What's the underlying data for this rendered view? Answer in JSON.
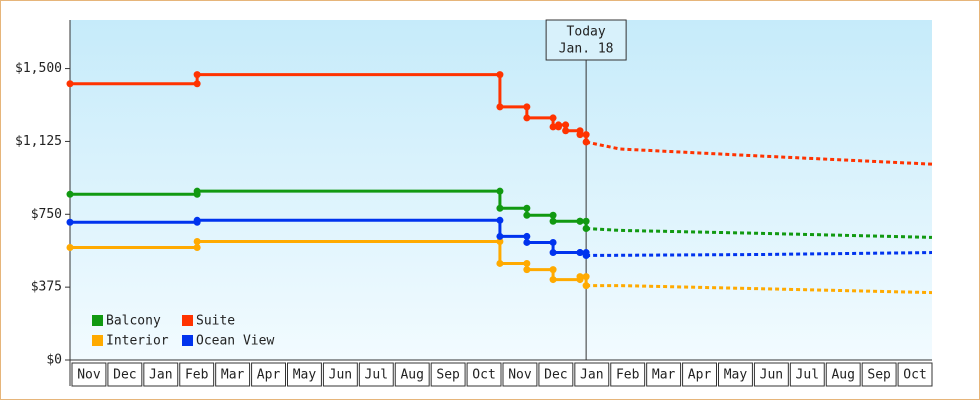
{
  "chart_data": {
    "type": "step-line",
    "categories": [
      "Nov",
      "Dec",
      "Jan",
      "Feb",
      "Mar",
      "Apr",
      "May",
      "Jun",
      "Jul",
      "Aug",
      "Sep",
      "Oct",
      "Nov",
      "Dec",
      "Jan",
      "Feb",
      "Mar",
      "Apr",
      "May",
      "Jun",
      "Jul",
      "Aug",
      "Sep",
      "Oct"
    ],
    "xlim": [
      0,
      24
    ],
    "ylim": [
      0,
      1750
    ],
    "yticks": [
      {
        "value": 0,
        "label": "$0"
      },
      {
        "value": 375,
        "label": "$375"
      },
      {
        "value": 750,
        "label": "$750"
      },
      {
        "value": 1125,
        "label": "$1,125"
      },
      {
        "value": 1500,
        "label": "$1,500"
      }
    ],
    "today": {
      "label": [
        "Today",
        "Jan. 18"
      ],
      "x": 14.37
    },
    "legend": "lower left",
    "series": [
      {
        "name": "Balcony",
        "color": "#119911",
        "x": [
          0,
          3.54,
          11.97,
          12.72,
          13.45,
          14.2,
          14.37
        ],
        "values": [
          853,
          869,
          781,
          745,
          714,
          714,
          677
        ],
        "forecast_x": [
          14.37,
          15.31,
          19.21,
          24
        ],
        "forecast_values": [
          677,
          667,
          652,
          631
        ]
      },
      {
        "name": "Suite",
        "color": "#ff3300",
        "x": [
          0,
          3.54,
          11.97,
          12.72,
          13.45,
          13.6,
          13.8,
          14.2,
          14.37
        ],
        "values": [
          1422,
          1469,
          1303,
          1246,
          1200,
          1210,
          1180,
          1160,
          1122
        ],
        "forecast_x": [
          14.37,
          15.31,
          19.21,
          24
        ],
        "forecast_values": [
          1122,
          1086,
          1050,
          1008
        ]
      },
      {
        "name": "Interior",
        "color": "#ffaa00",
        "x": [
          0,
          3.54,
          11.97,
          12.72,
          13.45,
          14.2,
          14.37
        ],
        "values": [
          579,
          610,
          497,
          465,
          414,
          429,
          383
        ],
        "forecast_x": [
          14.37,
          15.31,
          19.21,
          24
        ],
        "forecast_values": [
          383,
          383,
          367,
          347
        ]
      },
      {
        "name": "Ocean View",
        "color": "#0033ee",
        "x": [
          0,
          3.54,
          11.97,
          12.72,
          13.45,
          14.2,
          14.37
        ],
        "values": [
          709,
          719,
          636,
          605,
          553,
          553,
          538
        ],
        "forecast_x": [
          14.37,
          19.21,
          24
        ],
        "forecast_values": [
          538,
          543,
          553
        ]
      }
    ]
  }
}
